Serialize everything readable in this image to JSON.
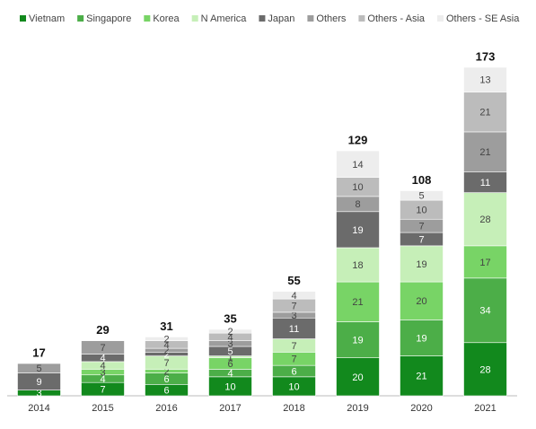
{
  "chart_data": {
    "type": "stacked-bar",
    "categories": [
      "2014",
      "2015",
      "2016",
      "2017",
      "2018",
      "2019",
      "2020",
      "2021"
    ],
    "series": [
      {
        "name": "Vietnam",
        "color": "#12891d",
        "values": [
          3,
          7,
          6,
          10,
          10,
          20,
          21,
          28
        ]
      },
      {
        "name": "Singapore",
        "color": "#4cae48",
        "values": [
          null,
          4,
          6,
          4,
          6,
          19,
          19,
          34
        ]
      },
      {
        "name": "Korea",
        "color": "#78d466",
        "values": [
          null,
          3,
          2,
          6,
          7,
          21,
          20,
          17
        ]
      },
      {
        "name": "N America",
        "color": "#c6efb8",
        "values": [
          null,
          4,
          7,
          1,
          7,
          18,
          19,
          28
        ]
      },
      {
        "name": "Japan",
        "color": "#6b6b6b",
        "values": [
          9,
          4,
          2,
          5,
          11,
          19,
          7,
          11
        ]
      },
      {
        "name": "Others",
        "color": "#9d9d9d",
        "values": [
          5,
          7,
          2,
          3,
          3,
          8,
          7,
          21
        ]
      },
      {
        "name": "Others - Asia",
        "color": "#bcbcbc",
        "values": [
          null,
          null,
          4,
          4,
          7,
          10,
          10,
          21
        ]
      },
      {
        "name": "Others - SE Asia",
        "color": "#ededed",
        "values": [
          null,
          null,
          2,
          2,
          4,
          14,
          5,
          13
        ]
      }
    ],
    "totals": [
      17,
      29,
      31,
      35,
      55,
      129,
      108,
      173
    ]
  }
}
